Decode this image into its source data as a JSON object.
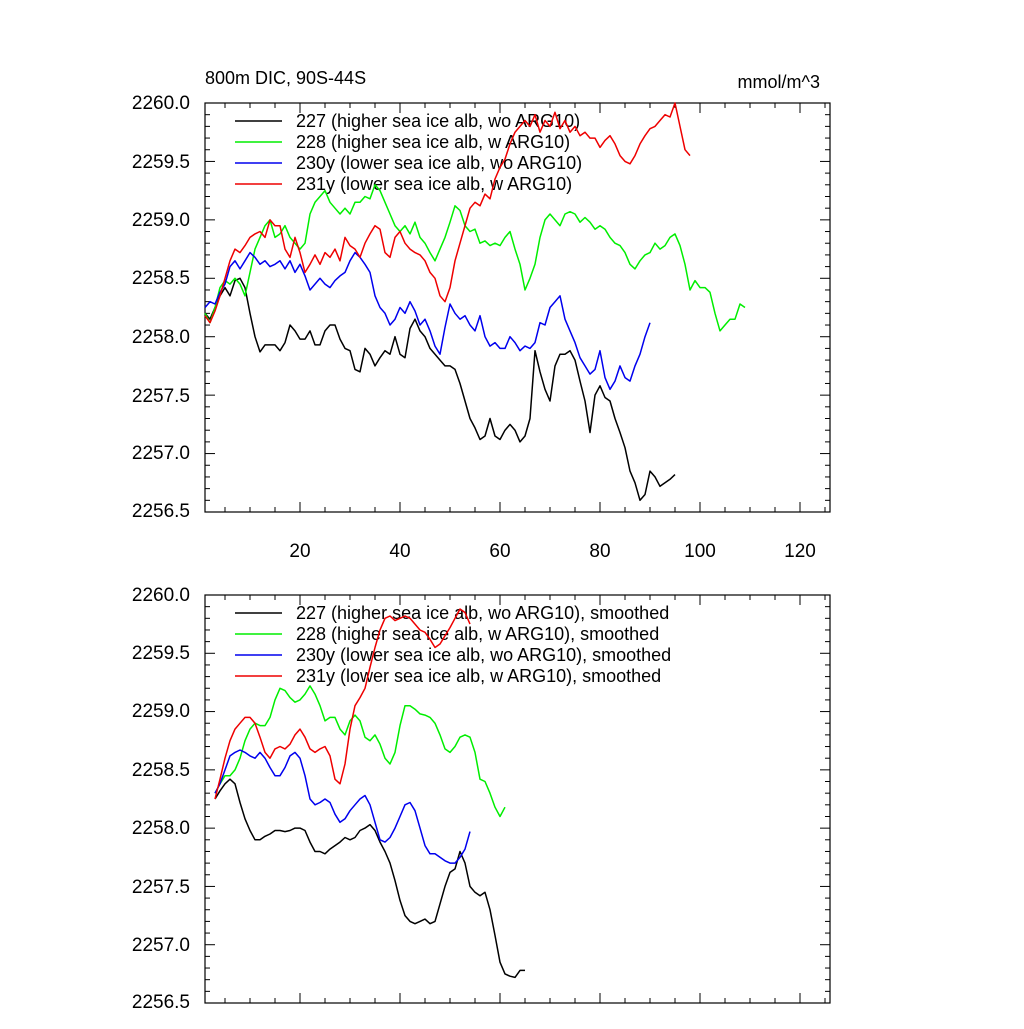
{
  "colors": {
    "s227": "#000000",
    "s228": "#00ee00",
    "s230y": "#0000ee",
    "s231y": "#ee0000"
  },
  "chart_data": [
    {
      "type": "line",
      "title_left": "800m DIC, 90S-44S",
      "title_right": "mmol/m^3",
      "xlim": [
        1,
        126
      ],
      "ylim": [
        2256.5,
        2260.0
      ],
      "x_ticks": [
        "20",
        "40",
        "60",
        "80",
        "100",
        "120"
      ],
      "y_ticks": [
        "2256.5",
        "2257.0",
        "2257.5",
        "2258.0",
        "2258.5",
        "2259.0",
        "2259.5",
        "2260.0"
      ],
      "legend_position": "top-left",
      "series": [
        {
          "name": "227 (higher sea ice alb, wo ARG10)",
          "color": "#000000",
          "x_start": 1,
          "values": [
            2258.2,
            2258.15,
            2258.25,
            2258.35,
            2258.42,
            2258.35,
            2258.48,
            2258.5,
            2258.42,
            2258.2,
            2258.0,
            2257.87,
            2257.93,
            2257.93,
            2257.93,
            2257.88,
            2257.95,
            2258.1,
            2258.05,
            2257.98,
            2257.98,
            2258.05,
            2257.93,
            2257.93,
            2258.05,
            2258.1,
            2258.1,
            2257.98,
            2257.9,
            2257.88,
            2257.72,
            2257.7,
            2257.9,
            2257.85,
            2257.75,
            2257.82,
            2257.88,
            2257.85,
            2258.0,
            2257.85,
            2257.82,
            2258.07,
            2258.15,
            2258.05,
            2258.0,
            2257.9,
            2257.85,
            2257.8,
            2257.75,
            2257.75,
            2257.72,
            2257.6,
            2257.45,
            2257.3,
            2257.22,
            2257.12,
            2257.15,
            2257.3,
            2257.15,
            2257.12,
            2257.2,
            2257.25,
            2257.2,
            2257.1,
            2257.15,
            2257.3,
            2257.88,
            2257.7,
            2257.55,
            2257.45,
            2257.75,
            2257.85,
            2257.85,
            2257.88,
            2257.8,
            2257.62,
            2257.45,
            2257.18,
            2257.5,
            2257.58,
            2257.48,
            2257.45,
            2257.3,
            2257.18,
            2257.05,
            2256.85,
            2256.75,
            2256.6,
            2256.65,
            2256.85,
            2256.8,
            2256.72,
            2256.75,
            2256.78,
            2256.82
          ]
        },
        {
          "name": "228 (higher sea ice alb, w ARG10)",
          "color": "#00ee00",
          "x_start": 1,
          "values": [
            2258.2,
            2258.12,
            2258.25,
            2258.42,
            2258.48,
            2258.45,
            2258.5,
            2258.45,
            2258.35,
            2258.55,
            2258.75,
            2258.85,
            2258.95,
            2259.0,
            2258.85,
            2258.88,
            2258.95,
            2258.85,
            2258.8,
            2258.75,
            2258.8,
            2259.05,
            2259.15,
            2259.2,
            2259.25,
            2259.15,
            2259.1,
            2259.05,
            2259.1,
            2259.05,
            2259.15,
            2259.15,
            2259.2,
            2259.18,
            2259.3,
            2259.25,
            2259.15,
            2259.05,
            2258.95,
            2258.9,
            2258.95,
            2258.88,
            2258.98,
            2258.85,
            2258.8,
            2258.72,
            2258.65,
            2258.75,
            2258.85,
            2258.98,
            2259.12,
            2259.08,
            2258.95,
            2258.9,
            2258.92,
            2258.8,
            2258.82,
            2258.78,
            2258.8,
            2258.78,
            2258.85,
            2258.9,
            2258.75,
            2258.62,
            2258.4,
            2258.5,
            2258.62,
            2258.85,
            2259.0,
            2259.05,
            2259.0,
            2258.95,
            2259.05,
            2259.07,
            2259.05,
            2258.98,
            2259.02,
            2258.98,
            2258.92,
            2258.95,
            2258.92,
            2258.85,
            2258.8,
            2258.78,
            2258.72,
            2258.62,
            2258.58,
            2258.65,
            2258.7,
            2258.72,
            2258.8,
            2258.75,
            2258.78,
            2258.85,
            2258.88,
            2258.78,
            2258.62,
            2258.4,
            2258.48,
            2258.42,
            2258.42,
            2258.38,
            2258.2,
            2258.05,
            2258.1,
            2258.15,
            2258.15,
            2258.28,
            2258.25
          ]
        },
        {
          "name": "230y (lower sea ice alb, wo ARG10)",
          "color": "#0000ee",
          "x_start": 1,
          "values": [
            2258.25,
            2258.3,
            2258.28,
            2258.38,
            2258.45,
            2258.6,
            2258.65,
            2258.58,
            2258.65,
            2258.72,
            2258.68,
            2258.62,
            2258.65,
            2258.6,
            2258.62,
            2258.65,
            2258.58,
            2258.65,
            2258.55,
            2258.62,
            2258.52,
            2258.4,
            2258.45,
            2258.5,
            2258.45,
            2258.42,
            2258.48,
            2258.52,
            2258.55,
            2258.65,
            2258.72,
            2258.68,
            2258.62,
            2258.55,
            2258.35,
            2258.25,
            2258.2,
            2258.1,
            2258.15,
            2258.25,
            2258.2,
            2258.3,
            2258.22,
            2258.1,
            2258.15,
            2258.05,
            2257.92,
            2257.85,
            2258.08,
            2258.28,
            2258.2,
            2258.15,
            2258.18,
            2258.1,
            2258.05,
            2258.18,
            2258.0,
            2257.92,
            2257.95,
            2257.9,
            2257.9,
            2258.0,
            2257.95,
            2257.88,
            2257.92,
            2257.9,
            2257.95,
            2258.12,
            2258.1,
            2258.25,
            2258.3,
            2258.35,
            2258.15,
            2258.05,
            2257.95,
            2257.82,
            2257.75,
            2257.68,
            2257.72,
            2257.88,
            2257.65,
            2257.55,
            2257.62,
            2257.75,
            2257.65,
            2257.62,
            2257.75,
            2257.85,
            2258.0,
            2258.12
          ]
        },
        {
          "name": "231y (lower sea ice alb, w ARG10)",
          "color": "#ee0000",
          "x_start": 1,
          "values": [
            2258.18,
            2258.12,
            2258.22,
            2258.35,
            2258.5,
            2258.65,
            2258.75,
            2258.72,
            2258.78,
            2258.85,
            2258.88,
            2258.9,
            2258.85,
            2259.0,
            2258.95,
            2258.95,
            2258.75,
            2258.68,
            2258.85,
            2258.72,
            2258.55,
            2258.62,
            2258.7,
            2258.62,
            2258.72,
            2258.68,
            2258.75,
            2258.65,
            2258.85,
            2258.78,
            2258.75,
            2258.68,
            2258.8,
            2258.88,
            2258.95,
            2258.92,
            2258.72,
            2258.68,
            2258.85,
            2258.9,
            2258.8,
            2258.75,
            2258.72,
            2258.7,
            2258.65,
            2258.55,
            2258.5,
            2258.35,
            2258.3,
            2258.42,
            2258.65,
            2258.8,
            2258.95,
            2259.1,
            2259.15,
            2259.12,
            2259.22,
            2259.18,
            2259.35,
            2259.45,
            2259.52,
            2259.65,
            2259.75,
            2259.8,
            2259.85,
            2259.8,
            2259.9,
            2259.75,
            2259.85,
            2259.8,
            2259.92,
            2259.78,
            2259.85,
            2259.75,
            2259.8,
            2259.72,
            2259.75,
            2259.7,
            2259.7,
            2259.62,
            2259.68,
            2259.72,
            2259.65,
            2259.55,
            2259.5,
            2259.48,
            2259.55,
            2259.65,
            2259.72,
            2259.78,
            2259.8,
            2259.85,
            2259.9,
            2259.88,
            2260.0,
            2259.8,
            2259.6,
            2259.55
          ]
        }
      ]
    },
    {
      "type": "line",
      "xlim": [
        1,
        126
      ],
      "ylim": [
        2256.5,
        2260.0
      ],
      "y_ticks": [
        "2256.5",
        "2257.0",
        "2257.5",
        "2258.0",
        "2258.5",
        "2259.0",
        "2259.5",
        "2260.0"
      ],
      "legend_position": "top-left",
      "series": [
        {
          "name": "227 (higher sea ice alb, wo ARG10), smoothed",
          "color": "#000000",
          "x_start": 3,
          "values": [
            2258.25,
            2258.32,
            2258.38,
            2258.42,
            2258.38,
            2258.22,
            2258.08,
            2257.98,
            2257.9,
            2257.9,
            2257.93,
            2257.95,
            2257.98,
            2257.98,
            2257.97,
            2257.98,
            2258.0,
            2258.0,
            2257.98,
            2257.88,
            2257.8,
            2257.8,
            2257.78,
            2257.82,
            2257.85,
            2257.88,
            2257.92,
            2257.9,
            2257.92,
            2257.98,
            2258.0,
            2258.03,
            2257.98,
            2257.88,
            2257.8,
            2257.7,
            2257.55,
            2257.38,
            2257.25,
            2257.2,
            2257.18,
            2257.2,
            2257.22,
            2257.18,
            2257.2,
            2257.35,
            2257.5,
            2257.62,
            2257.65,
            2257.8,
            2257.7,
            2257.5,
            2257.45,
            2257.42,
            2257.45,
            2257.3,
            2257.08,
            2256.85,
            2256.75,
            2256.73,
            2256.72,
            2256.78,
            2256.78
          ]
        },
        {
          "name": "228 (higher sea ice alb, w ARG10), smoothed",
          "color": "#00ee00",
          "x_start": 3,
          "values": [
            2258.3,
            2258.38,
            2258.45,
            2258.45,
            2258.5,
            2258.6,
            2258.75,
            2258.85,
            2258.9,
            2258.88,
            2258.88,
            2258.95,
            2259.1,
            2259.2,
            2259.18,
            2259.12,
            2259.08,
            2259.1,
            2259.15,
            2259.22,
            2259.15,
            2259.05,
            2258.92,
            2258.95,
            2258.95,
            2258.85,
            2258.8,
            2258.92,
            2258.97,
            2258.92,
            2258.78,
            2258.75,
            2258.8,
            2258.72,
            2258.6,
            2258.55,
            2258.65,
            2258.88,
            2259.05,
            2259.05,
            2259.02,
            2258.98,
            2258.97,
            2258.95,
            2258.9,
            2258.8,
            2258.68,
            2258.65,
            2258.7,
            2258.78,
            2258.8,
            2258.78,
            2258.65,
            2258.42,
            2258.4,
            2258.3,
            2258.18,
            2258.1,
            2258.18
          ]
        },
        {
          "name": "230y (lower sea ice alb, wo ARG10), smoothed",
          "color": "#0000ee",
          "x_start": 3,
          "values": [
            2258.3,
            2258.38,
            2258.5,
            2258.62,
            2258.65,
            2258.67,
            2258.65,
            2258.62,
            2258.6,
            2258.65,
            2258.6,
            2258.52,
            2258.45,
            2258.45,
            2258.52,
            2258.62,
            2258.65,
            2258.6,
            2258.45,
            2258.25,
            2258.2,
            2258.22,
            2258.25,
            2258.22,
            2258.12,
            2258.05,
            2258.08,
            2258.15,
            2258.2,
            2258.25,
            2258.28,
            2258.2,
            2258.05,
            2257.9,
            2257.88,
            2257.92,
            2258.0,
            2258.1,
            2258.2,
            2258.22,
            2258.15,
            2258.0,
            2257.85,
            2257.78,
            2257.78,
            2257.75,
            2257.72,
            2257.7,
            2257.7,
            2257.75,
            2257.82,
            2257.97
          ]
        },
        {
          "name": "231y (lower sea ice alb, w ARG10), smoothed",
          "color": "#ee0000",
          "x_start": 3,
          "values": [
            2258.25,
            2258.42,
            2258.6,
            2258.75,
            2258.85,
            2258.9,
            2258.95,
            2258.95,
            2258.9,
            2258.78,
            2258.65,
            2258.6,
            2258.68,
            2258.7,
            2258.68,
            2258.72,
            2258.8,
            2258.85,
            2258.78,
            2258.68,
            2258.65,
            2258.68,
            2258.7,
            2258.62,
            2258.42,
            2258.38,
            2258.55,
            2258.85,
            2259.05,
            2259.12,
            2259.2,
            2259.38,
            2259.55,
            2259.7,
            2259.8,
            2259.82,
            2259.78,
            2259.8,
            2259.82,
            2259.8,
            2259.75,
            2259.7,
            2259.68,
            2259.62,
            2259.55,
            2259.58,
            2259.65,
            2259.72,
            2259.8,
            2259.88,
            2259.85,
            2259.75
          ]
        }
      ]
    }
  ]
}
